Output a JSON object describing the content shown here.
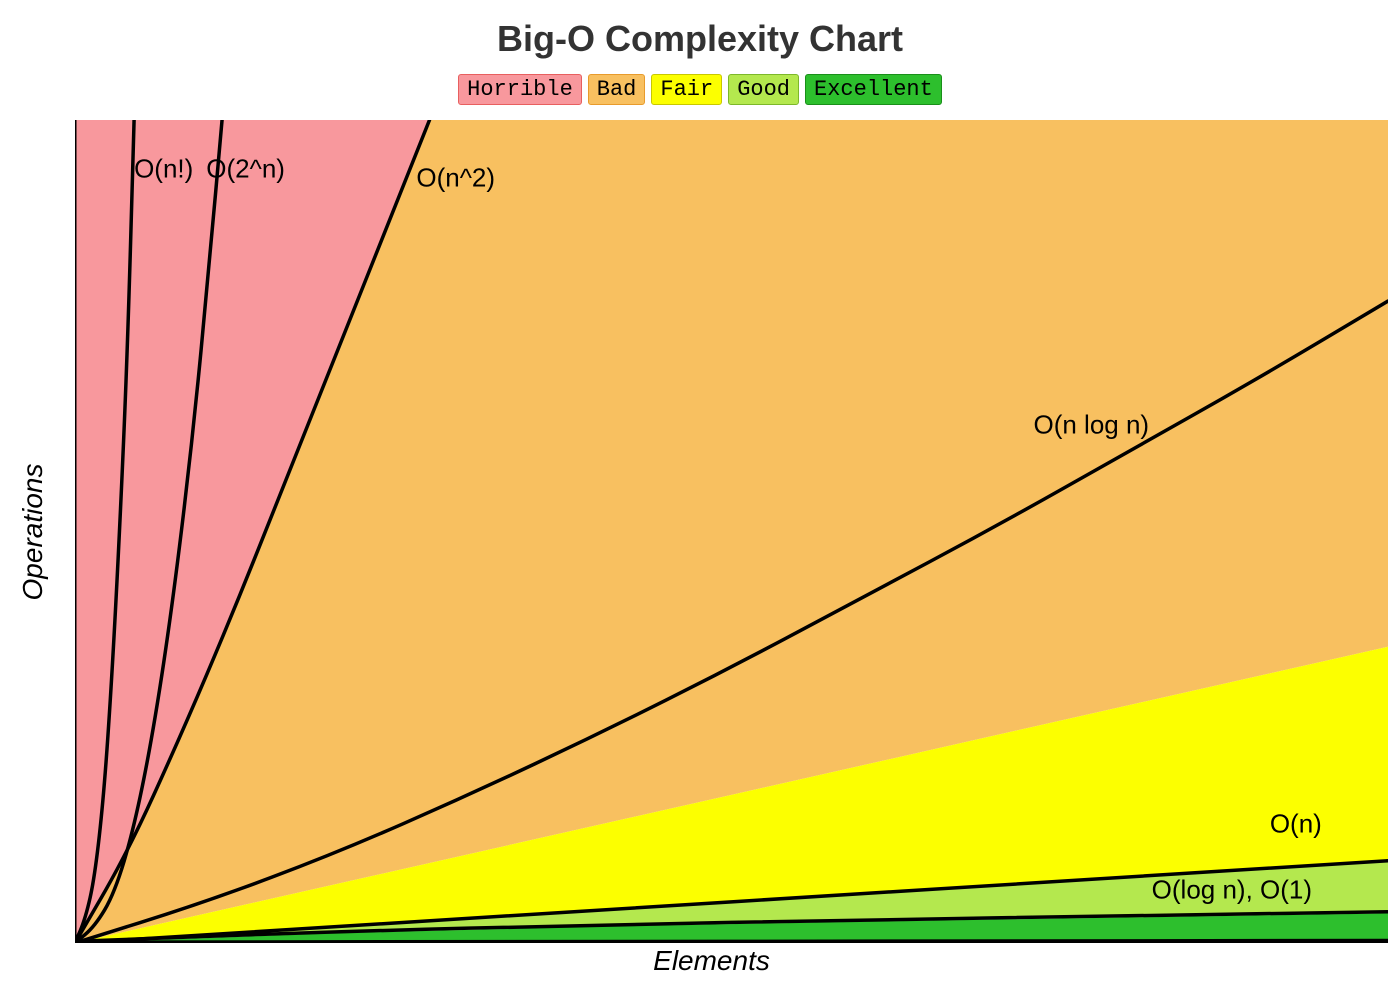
{
  "title": "Big-O Complexity Chart",
  "title_color": "#333333",
  "title_fontsize": 36,
  "background_color": "#ffffff",
  "legend": {
    "items": [
      {
        "label": "Horrible",
        "bg": "#f8989d",
        "border": "#e85f5f"
      },
      {
        "label": "Bad",
        "bg": "#f8c060",
        "border": "#e89b2c"
      },
      {
        "label": "Fair",
        "bg": "#fcff00",
        "border": "#c8c800"
      },
      {
        "label": "Good",
        "bg": "#b4e84e",
        "border": "#7db82a"
      },
      {
        "label": "Excellent",
        "bg": "#2dbf2d",
        "border": "#1a8f1a"
      }
    ],
    "font_family": "monospace",
    "font_size": 22
  },
  "axes": {
    "xlabel": "Elements",
    "ylabel": "Operations",
    "label_fontsize": 28,
    "axis_color": "#000000",
    "axis_width": 3,
    "xlim": [
      0,
      100
    ],
    "ylim": [
      0,
      100
    ]
  },
  "regions": {
    "comment": "Filled bands listed back-to-front. Each band polygon is defined by an upper boundary curve and a lower boundary curve (both as arrays of [x,y] in axis units 0-100, y-up).",
    "bands": [
      {
        "name": "horrible",
        "color": "#f8989d",
        "upper": [
          [
            0,
            0
          ],
          [
            0,
            100
          ],
          [
            100,
            100
          ]
        ],
        "lower": [
          [
            0,
            0
          ],
          [
            4,
            11
          ],
          [
            8,
            25
          ],
          [
            12,
            40
          ],
          [
            16,
            56
          ],
          [
            20,
            72
          ],
          [
            24,
            88
          ],
          [
            27,
            100
          ],
          [
            100,
            100
          ]
        ]
      },
      {
        "name": "bad",
        "color": "#f8c060",
        "upper": [
          [
            0,
            0
          ],
          [
            4,
            11
          ],
          [
            8,
            25
          ],
          [
            12,
            40
          ],
          [
            16,
            56
          ],
          [
            20,
            72
          ],
          [
            24,
            88
          ],
          [
            27,
            100
          ],
          [
            100,
            100
          ]
        ],
        "lower": [
          [
            0,
            0
          ],
          [
            100,
            36
          ]
        ]
      },
      {
        "name": "fair",
        "color": "#fcff00",
        "upper": [
          [
            0,
            0
          ],
          [
            100,
            36
          ]
        ],
        "lower": [
          [
            0,
            0
          ],
          [
            100,
            10
          ]
        ]
      },
      {
        "name": "good",
        "color": "#b4e84e",
        "upper": [
          [
            0,
            0
          ],
          [
            100,
            10
          ]
        ],
        "lower": [
          [
            0,
            0
          ],
          [
            20,
            1.2
          ],
          [
            40,
            2
          ],
          [
            60,
            2.6
          ],
          [
            80,
            3.1
          ],
          [
            100,
            3.6
          ]
        ]
      },
      {
        "name": "excellent",
        "color": "#2dbf2d",
        "upper": [
          [
            0,
            0
          ],
          [
            20,
            1.2
          ],
          [
            40,
            2
          ],
          [
            60,
            2.6
          ],
          [
            80,
            3.1
          ],
          [
            100,
            3.6
          ]
        ],
        "lower": [
          [
            0,
            0
          ],
          [
            100,
            0
          ]
        ]
      }
    ]
  },
  "curves": {
    "stroke_color": "#000000",
    "stroke_width": 3.5,
    "label_fontsize": 26,
    "items": [
      {
        "name": "O(n!)",
        "points": [
          [
            0,
            0
          ],
          [
            0.8,
            3
          ],
          [
            1.5,
            8
          ],
          [
            2.2,
            18
          ],
          [
            2.8,
            32
          ],
          [
            3.4,
            50
          ],
          [
            4.0,
            72
          ],
          [
            4.5,
            100
          ]
        ],
        "label_xy": [
          4.5,
          94
        ]
      },
      {
        "name": "O(2^n)",
        "points": [
          [
            0,
            0
          ],
          [
            1.5,
            2
          ],
          [
            3,
            6
          ],
          [
            4.5,
            14
          ],
          [
            6,
            26
          ],
          [
            7.5,
            42
          ],
          [
            9,
            62
          ],
          [
            10.2,
            82
          ],
          [
            11.2,
            100
          ]
        ],
        "label_xy": [
          10,
          94
        ]
      },
      {
        "name": "O(n^2)",
        "points": [
          [
            0,
            0
          ],
          [
            4,
            11
          ],
          [
            8,
            25
          ],
          [
            12,
            40
          ],
          [
            16,
            56
          ],
          [
            20,
            72
          ],
          [
            24,
            88
          ],
          [
            27,
            100
          ]
        ],
        "label_xy": [
          26,
          93
        ]
      },
      {
        "name": "O(n log n)",
        "points": [
          [
            0,
            0
          ],
          [
            10,
            5
          ],
          [
            20,
            11
          ],
          [
            30,
            18
          ],
          [
            40,
            25.5
          ],
          [
            50,
            33.5
          ],
          [
            60,
            42
          ],
          [
            70,
            50.5
          ],
          [
            80,
            59.5
          ],
          [
            90,
            68.5
          ],
          [
            100,
            78
          ]
        ],
        "label_xy": [
          73,
          63
        ]
      },
      {
        "name": "O(n)",
        "points": [
          [
            0,
            0
          ],
          [
            100,
            10
          ]
        ],
        "label_xy": [
          91,
          14.5
        ]
      },
      {
        "name": "O(log n), O(1)",
        "points": [
          [
            0,
            0.2
          ],
          [
            20,
            1.4
          ],
          [
            40,
            2.2
          ],
          [
            60,
            2.8
          ],
          [
            80,
            3.3
          ],
          [
            100,
            3.8
          ]
        ],
        "label_xy": [
          82,
          6.5
        ]
      },
      {
        "name": "_o1_hidden",
        "hide_label": true,
        "points": [
          [
            0,
            0.1
          ],
          [
            100,
            0.3
          ]
        ]
      }
    ]
  }
}
